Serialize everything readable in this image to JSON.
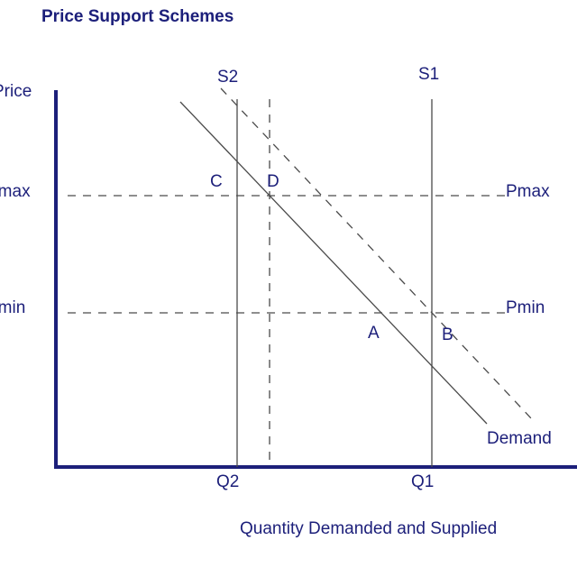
{
  "title": "Price Support Schemes",
  "y_axis_label": "Price",
  "x_axis_label": "Quantity Demanded and Supplied",
  "price_levels": {
    "pmax_left": "Pmax",
    "pmax_right": "Pmax",
    "pmin_left": "Pmin",
    "pmin_right": "Pmin"
  },
  "supply_curves": {
    "s1": "S1",
    "s2": "S2"
  },
  "quantities": {
    "q1": "Q1",
    "q2": "Q2"
  },
  "points": {
    "a": "A",
    "b": "B",
    "c": "C",
    "d": "D"
  },
  "demand_label": "Demand",
  "colors": {
    "axis": "#1c1f7a",
    "lines": "#4a4a4a",
    "text": "#1c1f7a"
  }
}
